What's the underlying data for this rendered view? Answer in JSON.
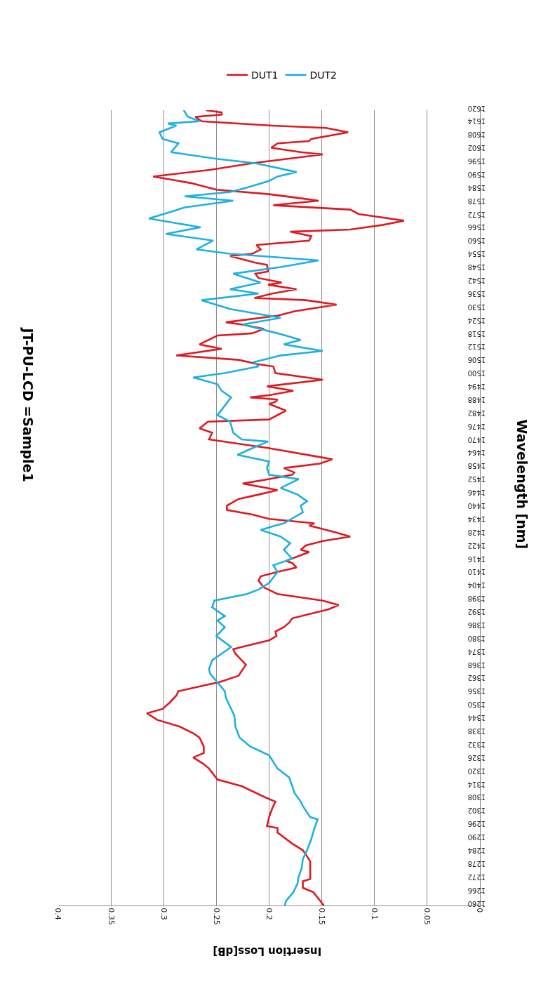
{
  "chart_data": {
    "type": "line",
    "title": "JT-PU-LCD =Sample1",
    "xlabel": "Insertion Loss[dB]",
    "ylabel": "Wavelength [nm]",
    "xlim": [
      0.4,
      0
    ],
    "xticks": [
      0,
      0.05,
      0.1,
      0.15,
      0.2,
      0.25,
      0.3,
      0.35,
      0.4
    ],
    "ylim": [
      1260,
      1620
    ],
    "yticks": [
      1260,
      1266,
      1272,
      1278,
      1284,
      1290,
      1296,
      1302,
      1308,
      1314,
      1320,
      1326,
      1332,
      1338,
      1344,
      1350,
      1356,
      1362,
      1368,
      1374,
      1380,
      1386,
      1392,
      1398,
      1404,
      1410,
      1416,
      1422,
      1428,
      1434,
      1440,
      1446,
      1452,
      1458,
      1464,
      1470,
      1476,
      1482,
      1488,
      1494,
      1500,
      1506,
      1512,
      1518,
      1524,
      1530,
      1536,
      1542,
      1548,
      1554,
      1560,
      1566,
      1572,
      1578,
      1584,
      1590,
      1596,
      1602,
      1608,
      1614,
      1620
    ],
    "grid": "x",
    "legend": "top",
    "marker": "none",
    "line_style": "solid",
    "series": [
      {
        "name": "DUT1",
        "color": "#dd1a22",
        "values": [
          1260,
          1266,
          1268,
          1271,
          1272,
          1280,
          1283,
          1285,
          1288,
          1293,
          1295,
          1296,
          1300,
          1304,
          1307,
          1309,
          1314,
          1317,
          1322,
          1324,
          1327,
          1329,
          1332,
          1336,
          1338,
          1341,
          1344,
          1347,
          1349,
          1352,
          1355,
          1357,
          1360,
          1361,
          1364,
          1369,
          1371,
          1374,
          1376,
          1377,
          1380,
          1382,
          1384,
          1386,
          1388,
          1390,
          1394,
          1396,
          1398,
          1401,
          1404,
          1407,
          1409,
          1411,
          1413,
          1415,
          1416,
          1418,
          1420,
          1421,
          1423,
          1425,
          1427,
          1429,
          1432,
          1433,
          1435,
          1437,
          1439,
          1441,
          1444,
          1446,
          1448,
          1449,
          1451,
          1453,
          1455,
          1456,
          1458,
          1460,
          1462,
          1463,
          1467,
          1471,
          1474,
          1476,
          1479,
          1480,
          1484,
          1487,
          1488,
          1489,
          1490,
          1491,
          1493,
          1495,
          1498,
          1501,
          1504,
          1505,
          1507,
          1509,
          1512,
          1514,
          1518,
          1519,
          1521,
          1523,
          1524,
          1527,
          1529,
          1532,
          1534,
          1535,
          1537,
          1539,
          1541,
          1542,
          1544,
          1546,
          1547,
          1550,
          1551,
          1554,
          1555,
          1557,
          1559,
          1561,
          1563,
          1565,
          1566,
          1568,
          1570,
          1572,
          1573,
          1575,
          1577,
          1579,
          1580,
          1582,
          1584,
          1587,
          1590,
          1593,
          1596,
          1600,
          1601,
          1603,
          1605,
          1606,
          1607,
          1610,
          1612,
          1613,
          1615,
          1617,
          1618,
          1619,
          1620
        ],
        "x": [
          0.148,
          0.158,
          0.168,
          0.168,
          0.161,
          0.161,
          0.165,
          0.168,
          0.178,
          0.192,
          0.192,
          0.202,
          0.2,
          0.197,
          0.194,
          0.204,
          0.226,
          0.249,
          0.257,
          0.262,
          0.272,
          0.262,
          0.262,
          0.266,
          0.272,
          0.285,
          0.306,
          0.316,
          0.301,
          0.294,
          0.288,
          0.286,
          0.258,
          0.248,
          0.229,
          0.222,
          0.226,
          0.232,
          0.234,
          0.226,
          0.2,
          0.193,
          0.194,
          0.186,
          0.181,
          0.178,
          0.144,
          0.134,
          0.149,
          0.192,
          0.205,
          0.21,
          0.208,
          0.192,
          0.174,
          0.178,
          0.184,
          0.173,
          0.162,
          0.17,
          0.165,
          0.149,
          0.123,
          0.138,
          0.162,
          0.157,
          0.2,
          0.216,
          0.24,
          0.24,
          0.229,
          0.21,
          0.192,
          0.202,
          0.225,
          0.2,
          0.178,
          0.176,
          0.186,
          0.152,
          0.14,
          0.152,
          0.2,
          0.257,
          0.254,
          0.266,
          0.258,
          0.2,
          0.184,
          0.2,
          0.194,
          0.192,
          0.218,
          0.2,
          0.177,
          0.202,
          0.149,
          0.194,
          0.196,
          0.21,
          0.229,
          0.288,
          0.245,
          0.266,
          0.249,
          0.216,
          0.205,
          0.226,
          0.241,
          0.192,
          0.176,
          0.136,
          0.165,
          0.214,
          0.197,
          0.174,
          0.201,
          0.188,
          0.21,
          0.213,
          0.201,
          0.202,
          0.213,
          0.237,
          0.216,
          0.208,
          0.212,
          0.162,
          0.16,
          0.18,
          0.123,
          0.093,
          0.072,
          0.101,
          0.115,
          0.123,
          0.196,
          0.153,
          0.168,
          0.2,
          0.25,
          0.274,
          0.31,
          0.256,
          0.216,
          0.149,
          0.17,
          0.198,
          0.192,
          0.162,
          0.16,
          0.125,
          0.146,
          0.197,
          0.264,
          0.27,
          0.245,
          0.245,
          0.26
        ]
      },
      {
        "name": "DUT2",
        "color": "#1fb0e0",
        "values": [
          1260,
          1262,
          1266,
          1270,
          1273,
          1277,
          1281,
          1285,
          1290,
          1295,
          1299,
          1300,
          1305,
          1307,
          1311,
          1314,
          1318,
          1322,
          1328,
          1332,
          1336,
          1341,
          1346,
          1350,
          1354,
          1357,
          1361,
          1365,
          1367,
          1371,
          1374,
          1377,
          1382,
          1386,
          1389,
          1391,
          1395,
          1398,
          1401,
          1403,
          1406,
          1411,
          1414,
          1417,
          1421,
          1424,
          1427,
          1430,
          1432,
          1433,
          1438,
          1441,
          1443,
          1446,
          1449,
          1453,
          1455,
          1458,
          1461,
          1464,
          1467,
          1470,
          1471,
          1474,
          1479,
          1482,
          1485,
          1490,
          1493,
          1496,
          1499,
          1501,
          1504,
          1506,
          1509,
          1511,
          1514,
          1516,
          1519,
          1523,
          1526,
          1530,
          1534,
          1537,
          1539,
          1542,
          1546,
          1549,
          1552,
          1555,
          1557,
          1561,
          1564,
          1567,
          1571,
          1574,
          1576,
          1579,
          1581,
          1583,
          1585,
          1588,
          1590,
          1592,
          1596,
          1598,
          1601,
          1605,
          1607,
          1610,
          1613,
          1614,
          1615,
          1617,
          1620
        ],
        "x": [
          0.185,
          0.184,
          0.177,
          0.173,
          0.172,
          0.169,
          0.168,
          0.164,
          0.16,
          0.157,
          0.154,
          0.161,
          0.168,
          0.17,
          0.176,
          0.178,
          0.181,
          0.192,
          0.2,
          0.218,
          0.228,
          0.232,
          0.233,
          0.237,
          0.241,
          0.242,
          0.249,
          0.256,
          0.257,
          0.254,
          0.245,
          0.236,
          0.25,
          0.242,
          0.249,
          0.242,
          0.254,
          0.252,
          0.221,
          0.21,
          0.2,
          0.192,
          0.196,
          0.178,
          0.186,
          0.18,
          0.189,
          0.208,
          0.194,
          0.186,
          0.168,
          0.17,
          0.164,
          0.173,
          0.189,
          0.172,
          0.2,
          0.202,
          0.2,
          0.23,
          0.216,
          0.201,
          0.226,
          0.234,
          0.237,
          0.249,
          0.244,
          0.236,
          0.245,
          0.249,
          0.272,
          0.242,
          0.21,
          0.214,
          0.189,
          0.149,
          0.186,
          0.17,
          0.192,
          0.225,
          0.189,
          0.237,
          0.264,
          0.21,
          0.237,
          0.208,
          0.234,
          0.189,
          0.153,
          0.237,
          0.269,
          0.253,
          0.298,
          0.265,
          0.314,
          0.293,
          0.28,
          0.234,
          0.28,
          0.237,
          0.221,
          0.2,
          0.192,
          0.174,
          0.213,
          0.25,
          0.293,
          0.286,
          0.301,
          0.304,
          0.288,
          0.296,
          0.266,
          0.277,
          0.281
        ]
      }
    ]
  }
}
